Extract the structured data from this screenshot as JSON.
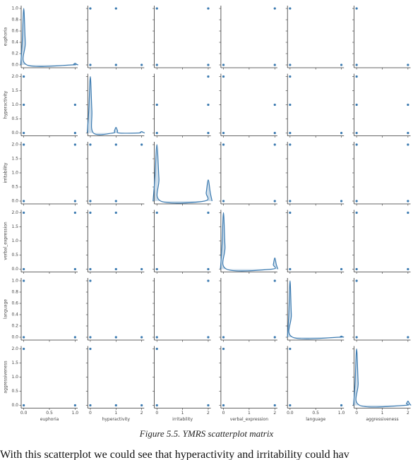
{
  "chart_data": {
    "type": "pairplot",
    "color": "#3b7ab0",
    "variables": [
      {
        "name": "euphoria",
        "lim": [
          -0.05,
          1.05
        ],
        "xticks": [
          {
            "value": 0,
            "label": "0.0"
          },
          0.5,
          {
            "value": 1,
            "label": "1.0"
          }
        ],
        "yticks": [
          {
            "value": 0,
            "label": "0.0"
          },
          0.2,
          0.4,
          0.6,
          0.8,
          {
            "value": 1,
            "label": "1.0"
          }
        ]
      },
      {
        "name": "hyperactivity",
        "lim": [
          -0.1,
          2.1
        ],
        "xticks": [
          0,
          1,
          2
        ],
        "yticks": [
          {
            "value": 0,
            "label": "0.0"
          },
          0.5,
          {
            "value": 1,
            "label": "1.0"
          },
          1.5,
          {
            "value": 2,
            "label": "2.0"
          }
        ]
      },
      {
        "name": "irritability",
        "lim": [
          -0.1,
          2.1
        ],
        "xticks": [
          0,
          1,
          2
        ],
        "yticks": [
          {
            "value": 0,
            "label": "0.0"
          },
          0.5,
          {
            "value": 1,
            "label": "1.0"
          },
          1.5,
          {
            "value": 2,
            "label": "2.0"
          }
        ]
      },
      {
        "name": "verbal_expression",
        "lim": [
          -0.1,
          2.1
        ],
        "xticks": [
          0,
          1,
          2
        ],
        "yticks": [
          {
            "value": 0,
            "label": "0.0"
          },
          0.5,
          {
            "value": 1,
            "label": "1.0"
          },
          1.5,
          {
            "value": 2,
            "label": "2.0"
          }
        ]
      },
      {
        "name": "language",
        "lim": [
          -0.05,
          1.05
        ],
        "xticks": [
          {
            "value": 0,
            "label": "0.0"
          },
          0.5,
          {
            "value": 1,
            "label": "1.0"
          }
        ],
        "yticks": [
          {
            "value": 0,
            "label": "0.0"
          },
          0.2,
          0.4,
          0.6,
          0.8,
          {
            "value": 1,
            "label": "1.0"
          }
        ]
      },
      {
        "name": "aggressiveness",
        "lim": [
          -0.1,
          2.1
        ],
        "xticks": [
          0,
          1,
          2
        ],
        "yticks": [
          {
            "value": 0,
            "label": "0.0"
          },
          0.5,
          {
            "value": 1,
            "label": "1.0"
          },
          1.5,
          {
            "value": 2,
            "label": "2.0"
          }
        ]
      }
    ],
    "panels": [
      [
        {
          "type": "kde",
          "x": [
            -0.06,
            -0.03,
            0,
            0.03,
            0.06,
            0.94,
            0.97,
            1,
            1.03,
            1.06
          ],
          "y": [
            0,
            0.4,
            1,
            0.4,
            0,
            0,
            0.01,
            0.03,
            0.01,
            0
          ]
        },
        {
          "type": "scatter",
          "x": [
            0,
            1,
            0,
            1,
            2
          ],
          "y": [
            1,
            1,
            0,
            0,
            0
          ]
        },
        {
          "type": "scatter",
          "x": [
            0,
            2,
            0,
            2
          ],
          "y": [
            1,
            1,
            0,
            0
          ]
        },
        {
          "type": "scatter",
          "x": [
            2,
            0,
            2
          ],
          "y": [
            1,
            0,
            0
          ]
        },
        {
          "type": "scatter",
          "x": [
            0,
            0,
            1
          ],
          "y": [
            1,
            0,
            0
          ]
        },
        {
          "type": "scatter",
          "x": [
            0,
            0,
            2
          ],
          "y": [
            1,
            0,
            0
          ]
        }
      ],
      [
        {
          "type": "scatter",
          "x": [
            0,
            0,
            1,
            0,
            1
          ],
          "y": [
            2,
            1,
            1,
            0,
            0
          ]
        },
        {
          "type": "kde",
          "x": [
            -0.12,
            -0.06,
            0,
            0.06,
            0.12,
            0.88,
            0.94,
            1,
            1.06,
            1.12,
            1.88,
            1.94,
            2,
            2.06,
            2.12
          ],
          "y": [
            0,
            0.8,
            2,
            0.8,
            0,
            0,
            0.08,
            0.2,
            0.08,
            0,
            0,
            0.02,
            0.05,
            0.02,
            0
          ]
        },
        {
          "type": "scatter",
          "x": [
            2,
            0,
            2,
            0,
            2
          ],
          "y": [
            2,
            1,
            1,
            0,
            0
          ]
        },
        {
          "type": "scatter",
          "x": [
            0,
            2,
            0,
            2
          ],
          "y": [
            2,
            1,
            0,
            0
          ]
        },
        {
          "type": "scatter",
          "x": [
            0,
            0,
            0,
            1
          ],
          "y": [
            2,
            1,
            0,
            0
          ]
        },
        {
          "type": "scatter",
          "x": [
            0,
            0,
            2,
            0,
            2
          ],
          "y": [
            2,
            1,
            1,
            0,
            0
          ]
        }
      ],
      [
        {
          "type": "scatter",
          "x": [
            0,
            1,
            0,
            1
          ],
          "y": [
            2,
            2,
            0,
            0
          ]
        },
        {
          "type": "scatter",
          "x": [
            0,
            1,
            2,
            0,
            1
          ],
          "y": [
            2,
            2,
            2,
            0,
            0
          ]
        },
        {
          "type": "kde",
          "x": [
            -0.15,
            -0.08,
            0,
            0.08,
            0.15,
            1.85,
            1.92,
            2,
            2.08,
            2.15
          ],
          "y": [
            0,
            0.8,
            2,
            0.8,
            0,
            0,
            0.3,
            0.75,
            0.3,
            0
          ]
        },
        {
          "type": "scatter",
          "x": [
            0,
            2,
            0,
            2
          ],
          "y": [
            2,
            2,
            0,
            0
          ]
        },
        {
          "type": "scatter",
          "x": [
            0,
            0,
            1
          ],
          "y": [
            2,
            0,
            0
          ]
        },
        {
          "type": "scatter",
          "x": [
            0,
            2,
            0,
            2
          ],
          "y": [
            2,
            2,
            0,
            0
          ]
        }
      ],
      [
        {
          "type": "scatter",
          "x": [
            0,
            1,
            0,
            1
          ],
          "y": [
            2,
            2,
            0,
            0
          ]
        },
        {
          "type": "scatter",
          "x": [
            0,
            1,
            0,
            1,
            2
          ],
          "y": [
            2,
            2,
            0,
            0,
            0
          ]
        },
        {
          "type": "scatter",
          "x": [
            0,
            2,
            0,
            2
          ],
          "y": [
            2,
            2,
            0,
            0
          ]
        },
        {
          "type": "kde",
          "x": [
            -0.12,
            -0.06,
            0,
            0.06,
            0.12,
            1.88,
            1.94,
            2,
            2.06,
            2.12
          ],
          "y": [
            0,
            0.8,
            2,
            0.8,
            0,
            0,
            0.16,
            0.4,
            0.16,
            0
          ]
        },
        {
          "type": "scatter",
          "x": [
            0,
            0,
            1
          ],
          "y": [
            2,
            0,
            0
          ]
        },
        {
          "type": "scatter",
          "x": [
            0,
            2,
            0,
            2
          ],
          "y": [
            2,
            2,
            0,
            0
          ]
        }
      ],
      [
        {
          "type": "scatter",
          "x": [
            0,
            0,
            1
          ],
          "y": [
            1,
            0,
            0
          ]
        },
        {
          "type": "scatter",
          "x": [
            0,
            0,
            1,
            2
          ],
          "y": [
            1,
            0,
            0,
            0
          ]
        },
        {
          "type": "scatter",
          "x": [
            2,
            0,
            2
          ],
          "y": [
            1,
            0,
            0
          ]
        },
        {
          "type": "scatter",
          "x": [
            2,
            0,
            2
          ],
          "y": [
            1,
            0,
            0
          ]
        },
        {
          "type": "kde",
          "x": [
            -0.05,
            -0.025,
            0,
            0.025,
            0.05,
            0.95,
            0.975,
            1,
            1.025,
            1.05
          ],
          "y": [
            0,
            0.4,
            1,
            0.4,
            0,
            0,
            0.008,
            0.02,
            0.008,
            0
          ]
        },
        {
          "type": "scatter",
          "x": [
            0,
            0,
            2
          ],
          "y": [
            1,
            0,
            0
          ]
        }
      ],
      [
        {
          "type": "scatter",
          "x": [
            0,
            0,
            1
          ],
          "y": [
            2,
            0,
            0
          ]
        },
        {
          "type": "scatter",
          "x": [
            0,
            0,
            1,
            2
          ],
          "y": [
            2,
            0,
            0,
            0
          ]
        },
        {
          "type": "scatter",
          "x": [
            0,
            0,
            2
          ],
          "y": [
            2,
            0,
            0
          ]
        },
        {
          "type": "scatter",
          "x": [
            0,
            0,
            2
          ],
          "y": [
            2,
            0,
            0
          ]
        },
        {
          "type": "scatter",
          "x": [
            0,
            0,
            1
          ],
          "y": [
            2,
            0,
            0
          ]
        },
        {
          "type": "kde",
          "x": [
            -0.12,
            -0.06,
            0,
            0.06,
            0.12,
            1.88,
            1.94,
            2,
            2.06,
            2.12
          ],
          "y": [
            0,
            0.8,
            2,
            0.8,
            0,
            0,
            0.06,
            0.15,
            0.06,
            0
          ]
        }
      ]
    ]
  },
  "caption": "Figure 5.5. YMRS scatterplot matrix",
  "body_text": "With this scatterplot we could see that hyperactivity and irritability could hav"
}
